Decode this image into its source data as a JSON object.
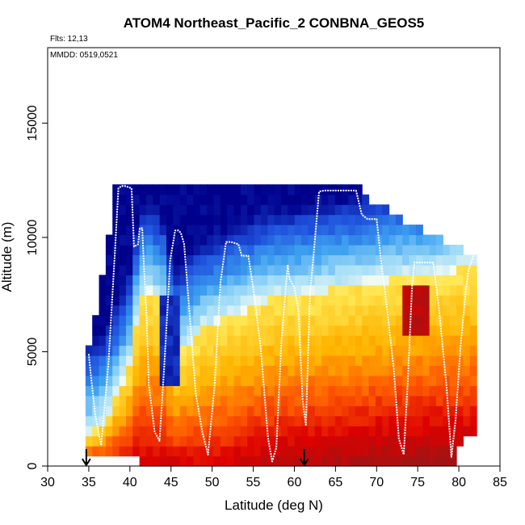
{
  "chart_data": {
    "type": "heatmap",
    "title": "ATOM4 Northeast_Pacific_2 CONBNA_GEOS5",
    "annotations": [
      "Flts: 12,13",
      "MMDD: 0519,0521"
    ],
    "xlabel": "Latitude (deg N)",
    "ylabel": "Altitude (m)",
    "xlim": [
      30,
      85
    ],
    "ylim": [
      0,
      18300
    ],
    "xticks": [
      30,
      35,
      40,
      45,
      50,
      55,
      60,
      65,
      70,
      75,
      80,
      85
    ],
    "xtick_labels": [
      "30",
      "35",
      "40",
      "45",
      "50",
      "55",
      "60",
      "65",
      "70",
      "75",
      "80",
      "85"
    ],
    "yticks": [
      0,
      5000,
      10000,
      15000
    ],
    "ytick_labels": [
      "0",
      "5000",
      "10000",
      "15000"
    ],
    "grid": false,
    "legend": "none",
    "colormap": [
      "#00008b",
      "#1e50dc",
      "#3ca0f0",
      "#a0dcf8",
      "#fffff0",
      "#ffe650",
      "#ffb400",
      "#ff5a00",
      "#dc0000",
      "#a01414"
    ],
    "markers": [
      {
        "x": 34.7,
        "label": "down-arrow"
      },
      {
        "x": 61.2,
        "label": "down-arrow"
      }
    ],
    "series": [
      {
        "kind": "flight-track",
        "color": "#ffffff",
        "x": [
          35.0,
          35.3,
          35.8,
          36.5,
          37.4,
          38.2,
          38.6,
          39.0,
          39.4,
          40.2,
          40.5,
          41.0,
          41.2,
          41.5,
          41.7,
          42.0,
          42.3,
          43.0,
          43.6,
          44.2,
          44.9,
          45.5,
          45.9,
          46.2,
          46.6,
          47.3,
          48.0,
          48.8,
          49.5,
          50.3,
          51.0,
          51.7,
          52.3,
          53.2,
          53.6,
          54.4,
          55.0,
          55.9,
          56.8,
          57.3,
          57.8,
          58.4,
          59.0,
          59.2,
          59.4,
          60.0,
          60.5,
          61.0,
          61.4,
          61.9,
          62.4,
          63.0,
          63.6,
          64.5,
          65.5,
          66.5,
          67.5,
          68.2,
          68.9,
          69.5,
          70.0,
          70.6,
          71.3,
          72.1,
          72.7,
          73.3,
          73.8,
          74.3,
          74.6,
          75.2,
          76.0,
          76.9,
          77.6,
          78.5,
          79.1,
          79.6,
          80.2,
          80.8,
          81.2,
          81.6,
          82.0
        ],
        "y": [
          4900,
          3800,
          2200,
          900,
          4500,
          9500,
          12150,
          12250,
          12250,
          12150,
          9600,
          9700,
          10400,
          10400,
          8800,
          6800,
          3600,
          1500,
          1100,
          4500,
          9000,
          10300,
          10300,
          10200,
          9700,
          6500,
          3200,
          1500,
          500,
          3500,
          8000,
          9800,
          9800,
          9700,
          9200,
          9200,
          7800,
          5200,
          1200,
          200,
          800,
          5300,
          8000,
          8800,
          8200,
          7800,
          6800,
          2900,
          1800,
          7500,
          9500,
          12000,
          12050,
          12050,
          12050,
          12050,
          12050,
          11000,
          10800,
          10800,
          10800,
          8800,
          6800,
          4200,
          1200,
          500,
          3800,
          7800,
          8900,
          8900,
          8900,
          8900,
          6800,
          3500,
          400,
          2000,
          5200,
          7500,
          8600,
          9000,
          9500
        ]
      }
    ]
  }
}
